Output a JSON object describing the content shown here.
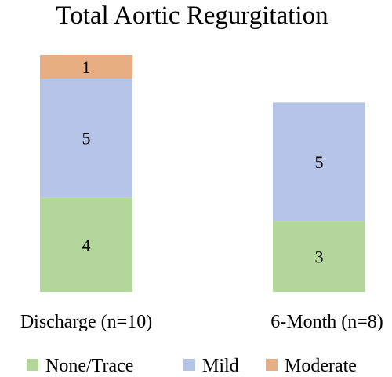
{
  "chart_data": {
    "type": "bar",
    "stacked": true,
    "title": "Total Aortic Regurgitation",
    "xlabel": "",
    "ylabel": "",
    "categories": [
      "Discharge (n=10)",
      "6-Month (n=8)"
    ],
    "series": [
      {
        "name": "None/Trace",
        "color": "#b3d69a",
        "values": [
          4,
          3
        ]
      },
      {
        "name": "Mild",
        "color": "#b4c3e6",
        "values": [
          5,
          5
        ]
      },
      {
        "name": "Moderate",
        "color": "#e8ae83",
        "values": [
          1,
          0
        ]
      }
    ],
    "data_labels": true,
    "ylim": [
      0,
      10
    ],
    "grid": false,
    "legend_position": "bottom"
  }
}
